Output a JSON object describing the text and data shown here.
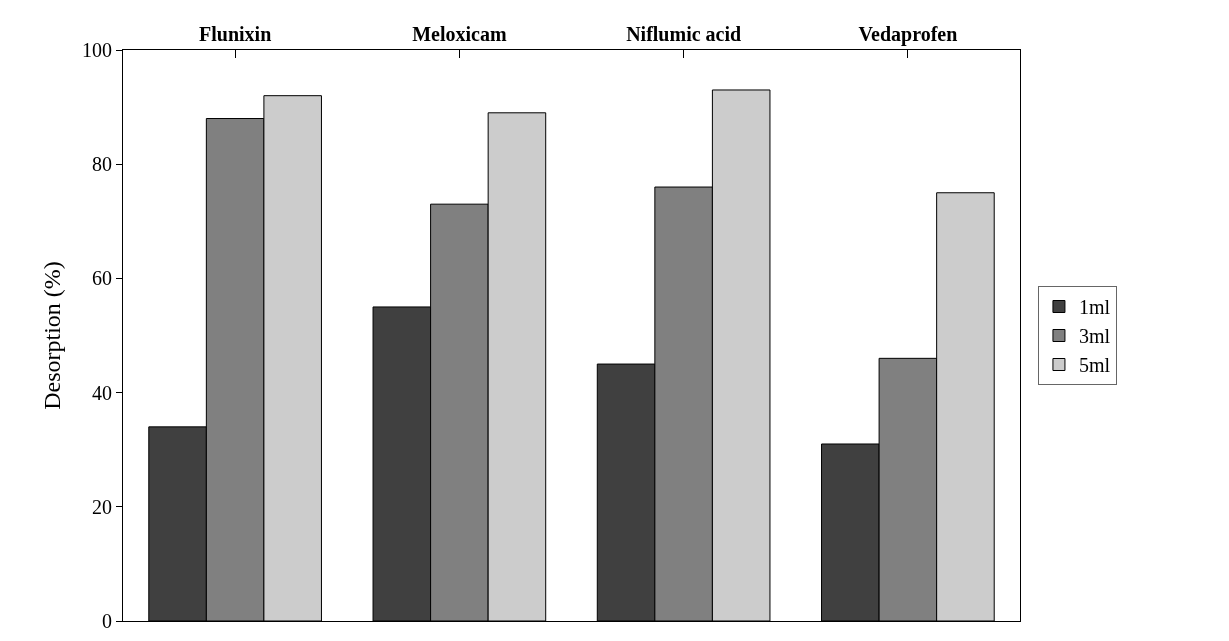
{
  "chart_data": {
    "type": "bar",
    "categories": [
      "Flunixin",
      "Meloxicam",
      "Niflumic acid",
      "Vedaprofen"
    ],
    "ylabel": "Desorption (%)",
    "ylim": [
      0,
      100
    ],
    "yticks": [
      0,
      20,
      40,
      60,
      80,
      100
    ],
    "grid": false,
    "legend": "right",
    "series": [
      {
        "name": "1ml",
        "color": "#404040",
        "values": [
          34,
          55,
          45,
          31
        ]
      },
      {
        "name": "3ml",
        "color": "#808080",
        "values": [
          88,
          73,
          76,
          46
        ]
      },
      {
        "name": "5ml",
        "color": "#cccccc",
        "values": [
          92,
          89,
          93,
          75
        ]
      }
    ]
  }
}
